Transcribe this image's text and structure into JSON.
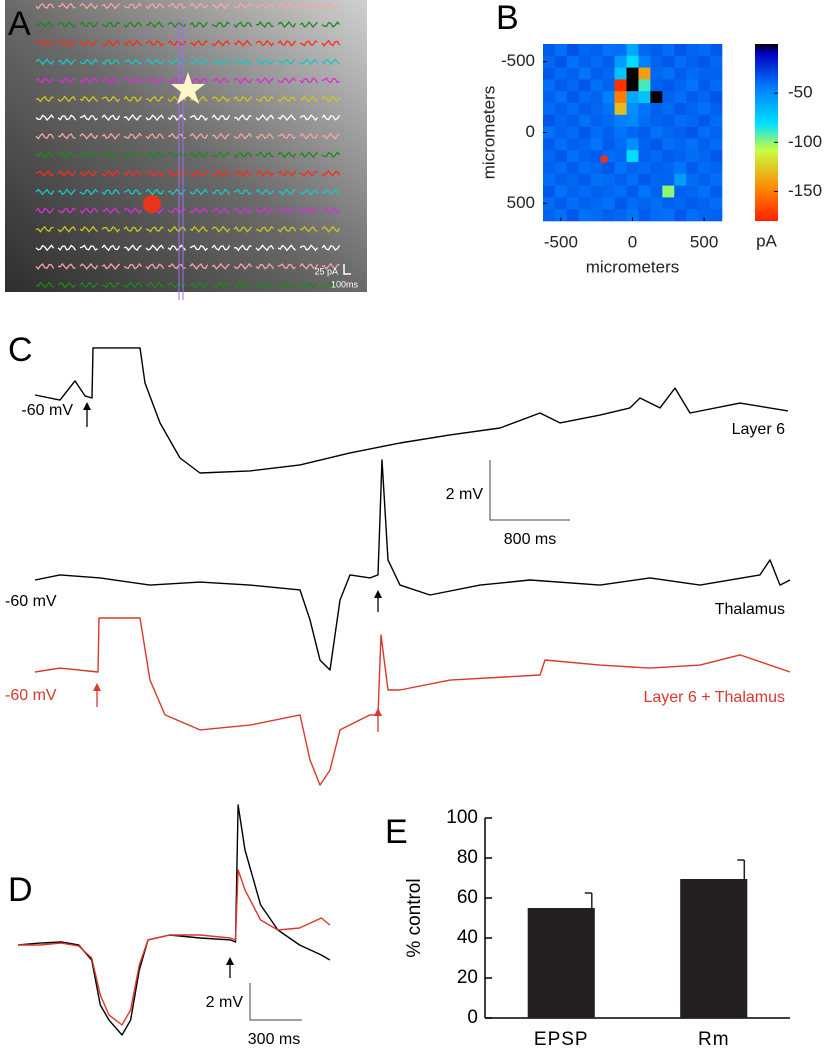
{
  "chart_data": [
    {
      "type": "image",
      "label": "A",
      "scale_labels": [
        "25 pA",
        "100ms"
      ]
    },
    {
      "type": "heatmap",
      "label": "B",
      "xlabel": "micrometers",
      "ylabel": "micrometers",
      "xlim": [
        -625,
        625
      ],
      "ylim": [
        -625,
        625
      ],
      "yaxis_inverted": true,
      "xticks": [
        -500,
        0,
        500
      ],
      "yticks": [
        -500,
        0,
        500
      ],
      "clim": [
        -180,
        0
      ],
      "cticks": [
        -50,
        -100,
        -150
      ],
      "clabel": "pA",
      "values": [
        [
          -35,
          -40,
          -32,
          -38,
          -36,
          -42,
          -40,
          -60,
          -38,
          -35,
          -40,
          -33,
          -37,
          -39,
          -34
        ],
        [
          -38,
          -33,
          -41,
          -36,
          -39,
          -35,
          -55,
          -80,
          -45,
          -37,
          -34,
          -40,
          -36,
          -33,
          -38
        ],
        [
          -34,
          -39,
          -36,
          -42,
          -35,
          -38,
          -70,
          0,
          -140,
          -38,
          -41,
          -35,
          -39,
          -37,
          -36
        ],
        [
          -40,
          -35,
          -38,
          -33,
          -41,
          -37,
          -175,
          0,
          -90,
          -36,
          -34,
          -38,
          -42,
          -35,
          -39
        ],
        [
          -36,
          -41,
          -34,
          -39,
          -37,
          -45,
          -150,
          -60,
          -70,
          0,
          -37,
          -40,
          -35,
          -38,
          -33
        ],
        [
          -39,
          -36,
          -40,
          -35,
          -38,
          -41,
          -130,
          -50,
          -42,
          -36,
          -39,
          -34,
          -37,
          -41,
          -36
        ],
        [
          -33,
          -38,
          -35,
          -41,
          -36,
          -39,
          -45,
          -48,
          -40,
          -37,
          -35,
          -40,
          -38,
          -34,
          -39
        ],
        [
          -41,
          -37,
          -39,
          -34,
          -40,
          -36,
          -42,
          -38,
          -35,
          -41,
          -38,
          -36,
          -33,
          -40,
          -37
        ],
        [
          -35,
          -40,
          -36,
          -38,
          -42,
          -35,
          -39,
          -50,
          -37,
          -34,
          -40,
          -38,
          -41,
          -36,
          -39
        ],
        [
          -38,
          -34,
          -41,
          -37,
          -35,
          -40,
          -38,
          -80,
          -36,
          -39,
          -35,
          -37,
          -40,
          -38,
          -34
        ],
        [
          -36,
          -39,
          -35,
          -40,
          -38,
          -34,
          -41,
          -37,
          -39,
          -36,
          -38,
          -42,
          -35,
          -39,
          -37
        ],
        [
          -40,
          -36,
          -38,
          -35,
          -41,
          -39,
          -36,
          -40,
          -34,
          -38,
          -37,
          -55,
          -39,
          -36,
          -40
        ],
        [
          -34,
          -41,
          -37,
          -39,
          -36,
          -38,
          -40,
          -35,
          -42,
          -37,
          -100,
          -36,
          -38,
          -41,
          -35
        ],
        [
          -39,
          -35,
          -40,
          -36,
          -38,
          -41,
          -34,
          -39,
          -37,
          -40,
          -36,
          -38,
          -35,
          -37,
          -40
        ],
        [
          -37,
          -40,
          -34,
          -41,
          -39,
          -36,
          -38,
          -42,
          -35,
          -39,
          -41,
          -34,
          -40,
          -38,
          -36
        ]
      ]
    },
    {
      "type": "traces",
      "label": "C",
      "scale_labels": [
        "2 mV",
        "800 ms"
      ],
      "series": [
        {
          "name": "Layer 6",
          "color": "#000000",
          "baseline_label": "-60 mV",
          "x": [
            0,
            250,
            400,
            500,
            570,
            580,
            1050,
            1100,
            1250,
            1450,
            1650,
            2150,
            2650,
            3150,
            3650,
            4150,
            4650,
            5050,
            5250,
            5650,
            5950,
            6050,
            6250,
            6400,
            6550,
            7050,
            7530
          ],
          "values": [
            -59.9,
            -60.07,
            -59.43,
            -59.93,
            -60,
            -58.33,
            -58.33,
            -59.5,
            -60.83,
            -62,
            -62.5,
            -62.43,
            -62.23,
            -61.83,
            -61.5,
            -61.23,
            -61,
            -60.5,
            -60.83,
            -60.57,
            -60.33,
            -60,
            -60.33,
            -59.67,
            -60.5,
            -60.17,
            -60.43
          ]
        },
        {
          "name": "Thalamus",
          "color": "#000000",
          "baseline_label": "-60 mV",
          "x": [
            0,
            250,
            650,
            1150,
            1650,
            2150,
            2650,
            2750,
            2850,
            2950,
            3050,
            3150,
            3350,
            3430,
            3470,
            3530,
            3650,
            3950,
            4450,
            4950,
            5650,
            6150,
            6650,
            7250,
            7350,
            7450,
            7550
          ],
          "values": [
            -60,
            -59.83,
            -59.93,
            -60.17,
            -60.07,
            -60.17,
            -60.33,
            -61.33,
            -62.67,
            -63,
            -60.67,
            -59.83,
            -59.93,
            -59.83,
            -56,
            -59.33,
            -60.17,
            -60.5,
            -60.17,
            -60,
            -60.17,
            -59.93,
            -60.17,
            -59.83,
            -59.33,
            -60.17,
            -60
          ]
        },
        {
          "name": "Layer 6 + Thalamus",
          "color": "#d9382c",
          "baseline_label": "-60 mV",
          "x": [
            0,
            250,
            630,
            640,
            1050,
            1150,
            1300,
            1650,
            2150,
            2650,
            2750,
            2850,
            2950,
            3050,
            3350,
            3430,
            3460,
            3530,
            3650,
            4150,
            5050,
            5100,
            5650,
            6150,
            6650,
            7050,
            7550
          ],
          "values": [
            -60,
            -59.87,
            -60,
            -58.2,
            -58.2,
            -60.27,
            -61.43,
            -61.93,
            -61.77,
            -61.43,
            -62.93,
            -63.77,
            -63.27,
            -61.93,
            -61.43,
            -61.43,
            -58.77,
            -60.6,
            -60.6,
            -60.27,
            -60.1,
            -59.6,
            -59.77,
            -59.87,
            -59.77,
            -59.43,
            -60
          ]
        }
      ]
    },
    {
      "type": "traces",
      "label": "D",
      "scale_labels": [
        "2 mV",
        "300 ms"
      ],
      "series": [
        {
          "color": "#000000",
          "x": [
            0,
            125,
            250,
            350,
            425,
            475,
            525,
            600,
            650,
            700,
            750,
            875,
            1050,
            1225,
            1255,
            1270,
            1310,
            1400,
            1500,
            1625,
            1750,
            1800
          ],
          "values": [
            0,
            0.11,
            0.17,
            0,
            -0.86,
            -3.43,
            -4.29,
            -5.14,
            -4.29,
            -1.43,
            0.29,
            0.57,
            0.4,
            0.29,
            0.17,
            8.0,
            5.43,
            2.29,
            0.86,
            0,
            -0.57,
            -0.86
          ]
        },
        {
          "color": "#d9382c",
          "x": [
            0,
            125,
            250,
            350,
            425,
            475,
            525,
            600,
            650,
            700,
            750,
            875,
            1050,
            1225,
            1255,
            1270,
            1310,
            1400,
            1500,
            1625,
            1750,
            1800
          ],
          "values": [
            0,
            0,
            0.11,
            -0.06,
            -0.74,
            -2.86,
            -4,
            -4.57,
            -3.71,
            -1.14,
            0.29,
            0.57,
            0.57,
            0.4,
            0.29,
            4.29,
            3.14,
            1.43,
            0.86,
            0.97,
            1.54,
            1.14
          ]
        }
      ]
    },
    {
      "type": "bar",
      "label": "E",
      "ylabel": "% control",
      "categories": [
        "EPSP",
        "Rm"
      ],
      "values": [
        55,
        69.5
      ],
      "errors": [
        7.5,
        9.5
      ],
      "ylim": [
        0,
        100
      ],
      "yticks": [
        0,
        20,
        40,
        60,
        80,
        100
      ],
      "color": "#231f20"
    }
  ]
}
